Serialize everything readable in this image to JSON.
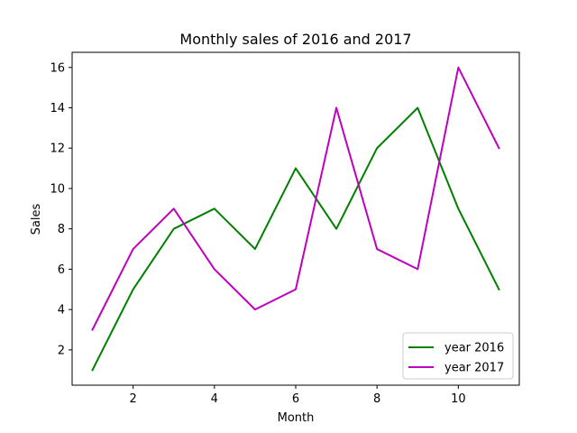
{
  "chart_data": {
    "type": "line",
    "title": "Monthly sales of 2016 and 2017",
    "xlabel": "Month",
    "ylabel": "Sales",
    "x": [
      1,
      2,
      3,
      4,
      5,
      6,
      7,
      8,
      9,
      10,
      11
    ],
    "xlim": [
      0.5,
      11.5
    ],
    "ylim": [
      0.25,
      16.75
    ],
    "xticks": [
      2,
      4,
      6,
      8,
      10
    ],
    "yticks": [
      2,
      4,
      6,
      8,
      10,
      12,
      14,
      16
    ],
    "grid": false,
    "legend_position": "bottom-right",
    "series": [
      {
        "name": "year 2016",
        "color": "#008000",
        "values": [
          1,
          5,
          8,
          9,
          7,
          11,
          8,
          12,
          14,
          9,
          5
        ]
      },
      {
        "name": "year 2017",
        "color": "#bf00bf",
        "values": [
          3,
          7,
          9,
          6,
          4,
          5,
          14,
          7,
          6,
          16,
          12
        ]
      }
    ]
  }
}
